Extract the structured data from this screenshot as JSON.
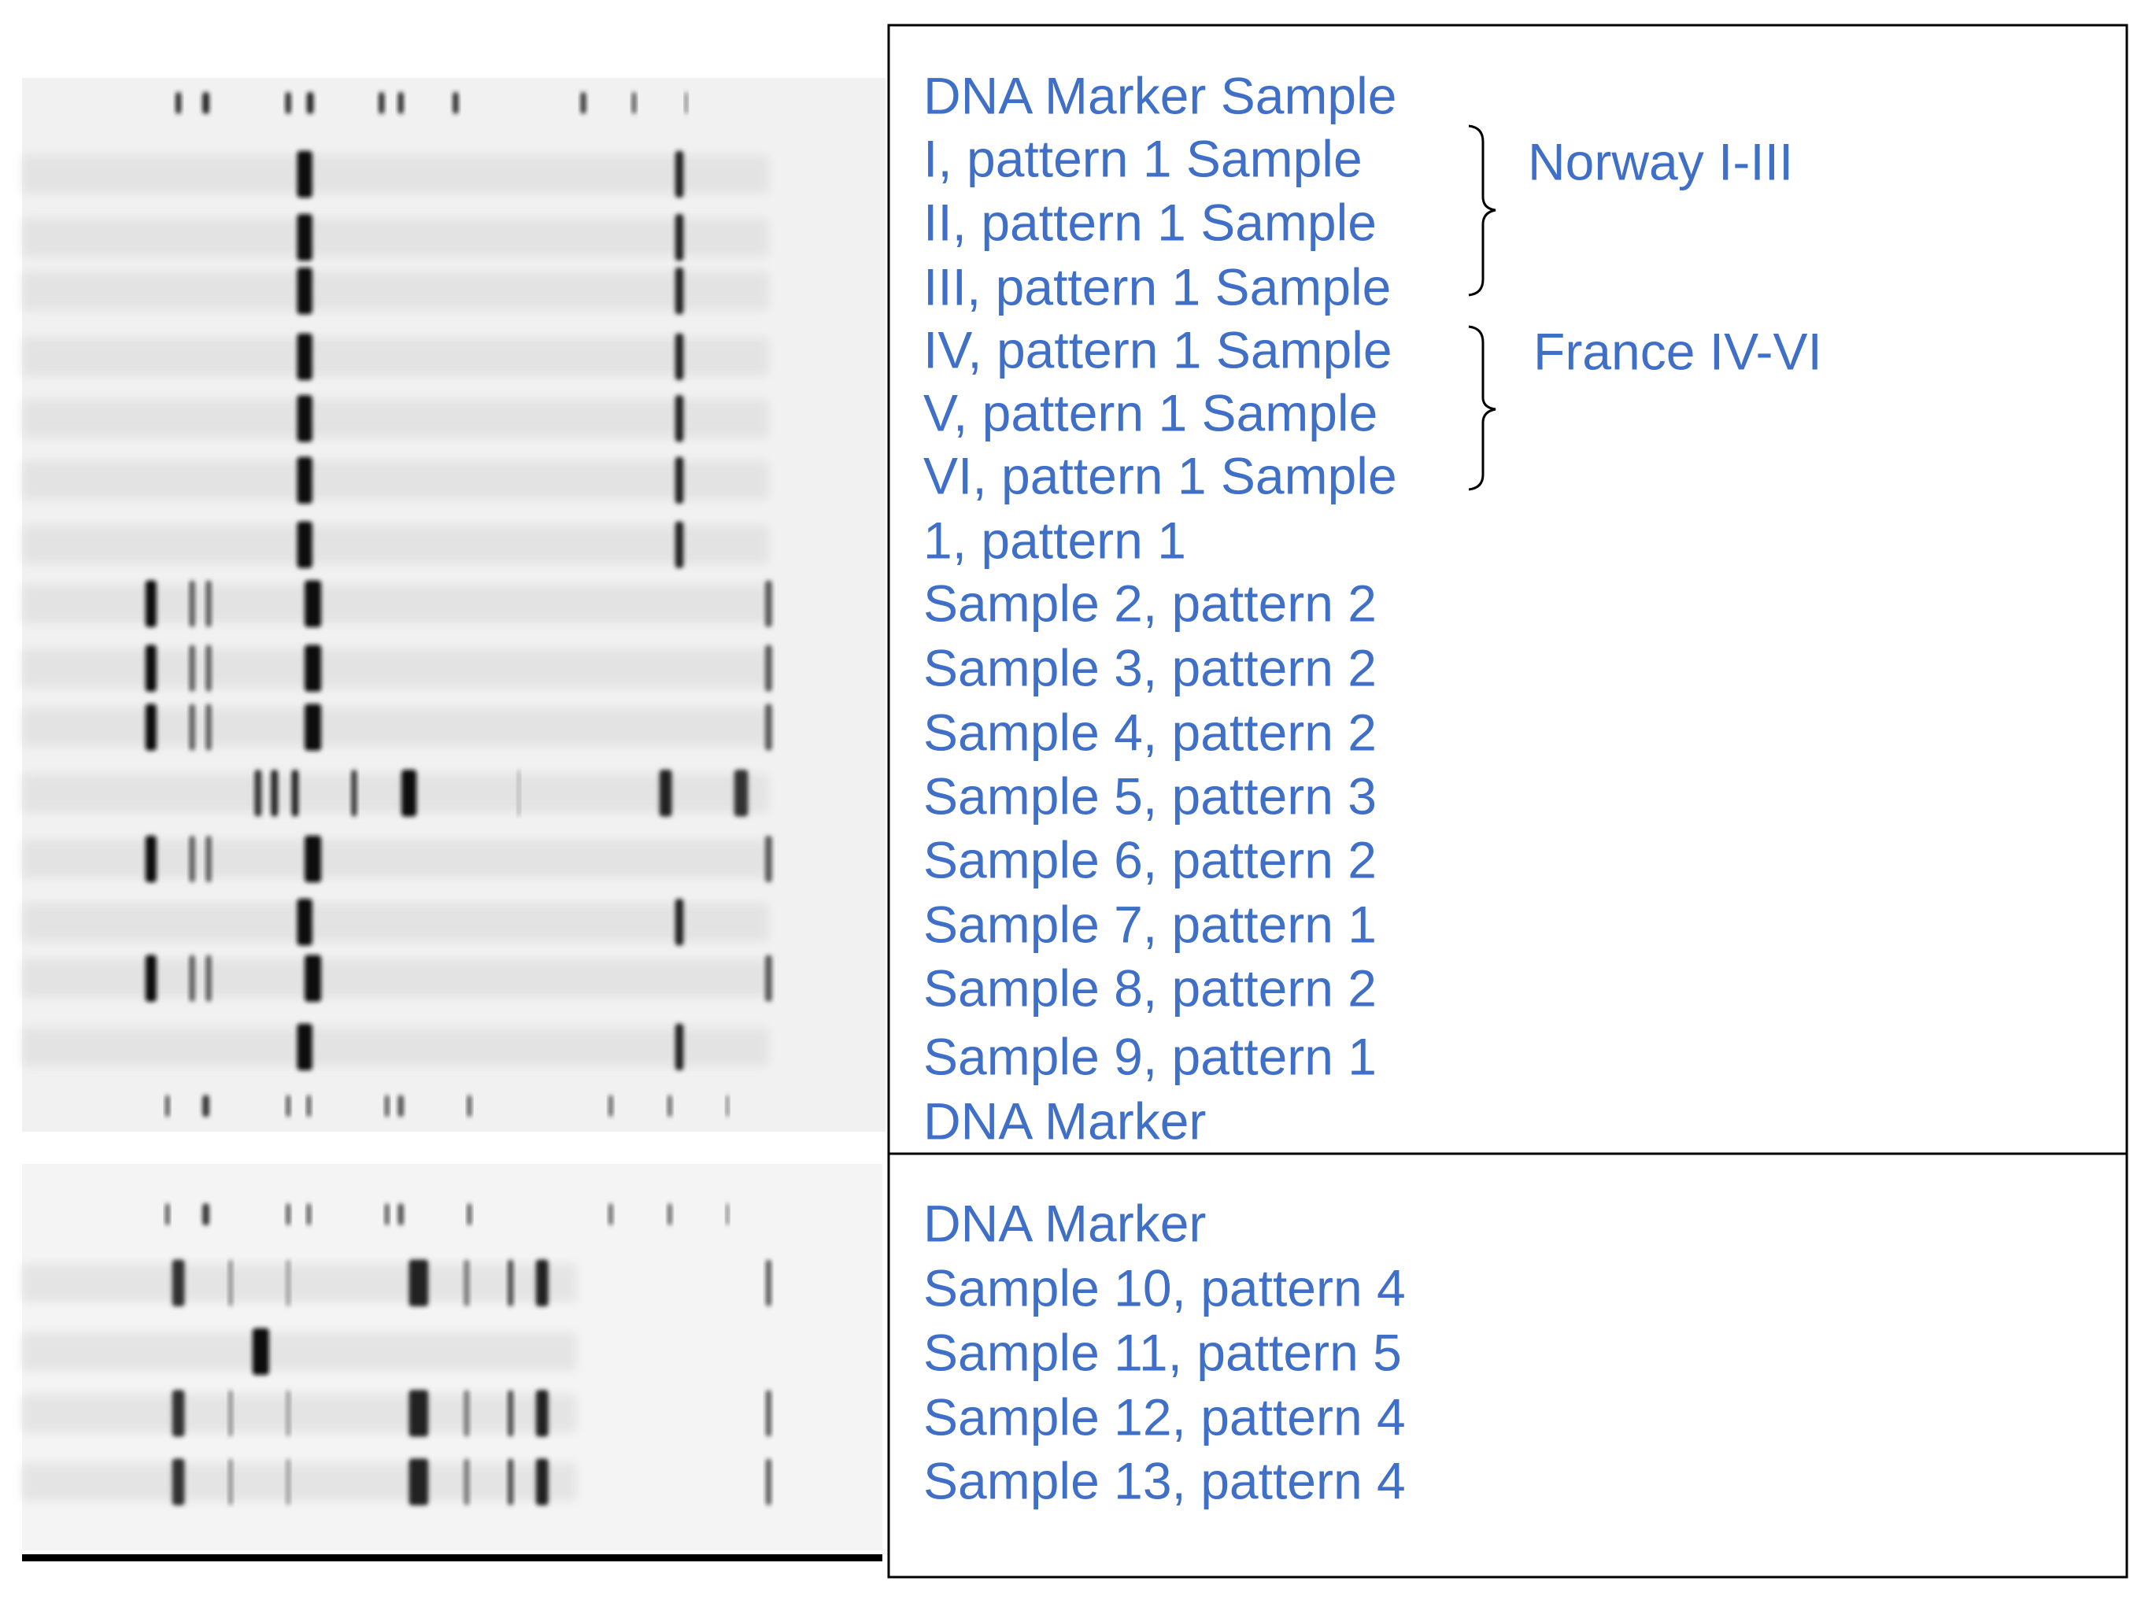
{
  "top_panel": {
    "lines": [
      "DNA Marker Sample",
      "I, pattern 1 Sample",
      "II, pattern 1 Sample",
      "III, pattern 1 Sample",
      "IV, pattern 1 Sample",
      "V, pattern 1 Sample",
      "VI, pattern 1 Sample",
      "1, pattern 1",
      "Sample 2, pattern 2",
      "Sample 3, pattern 2",
      "Sample 4, pattern 2",
      "Sample 5, pattern 3",
      "Sample 6, pattern 2",
      "Sample 7, pattern 1",
      "Sample 8, pattern 2",
      "Sample 9, pattern 1",
      "DNA Marker"
    ]
  },
  "brackets": [
    {
      "label": "Norway I-III"
    },
    {
      "label": "France IV-VI"
    }
  ],
  "bottom_panel": {
    "lines": [
      "DNA Marker",
      "Sample 10, pattern 4",
      "Sample 11, pattern 5",
      "Sample 12, pattern 4",
      "Sample 13, pattern 4"
    ]
  }
}
